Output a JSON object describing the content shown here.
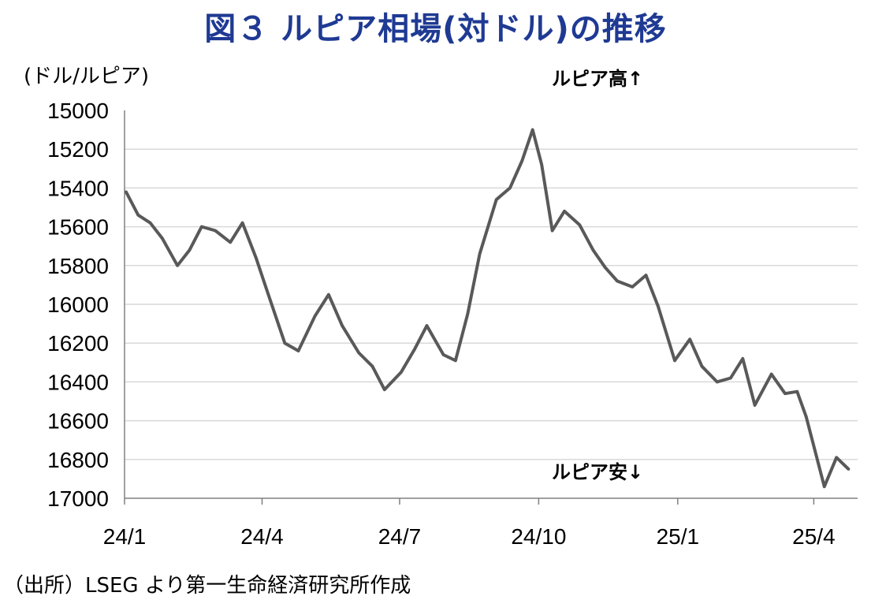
{
  "title": "図３ ルピア相場(対ドル)の推移",
  "unit_label": "(ドル/ルピア)",
  "source": "（出所）LSEG より第一生命経済研究所作成",
  "chart_data": {
    "type": "line",
    "title": "図３ ルピア相場(対ドル)の推移",
    "ylabel": "(ドル/ルピア)",
    "xlabel": "",
    "y_inverted": true,
    "ylim": [
      15000,
      17000
    ],
    "yticks": [
      15000,
      15200,
      15400,
      15600,
      15800,
      16000,
      16200,
      16400,
      16600,
      16800,
      17000
    ],
    "yticks_labels": [
      "15000",
      "15200",
      "15400",
      "15600",
      "15800",
      "16000",
      "16200",
      "16400",
      "16600",
      "16800",
      "17000"
    ],
    "xticks": [
      "24/1",
      "24/4",
      "24/7",
      "24/10",
      "25/1",
      "25/4"
    ],
    "grid": "horizontal",
    "annotations": {
      "top": "ルピア高↑",
      "bottom": "ルピア安↓"
    },
    "series": [
      {
        "color": "#595959",
        "x": [
          "2024-01-02",
          "2024-01-10",
          "2024-01-18",
          "2024-01-26",
          "2024-02-05",
          "2024-02-13",
          "2024-02-21",
          "2024-03-01",
          "2024-03-11",
          "2024-03-19",
          "2024-03-28",
          "2024-04-03",
          "2024-04-16",
          "2024-04-25",
          "2024-05-06",
          "2024-05-15",
          "2024-05-24",
          "2024-06-04",
          "2024-06-13",
          "2024-06-21",
          "2024-07-02",
          "2024-07-11",
          "2024-07-19",
          "2024-07-30",
          "2024-08-07",
          "2024-08-15",
          "2024-08-23",
          "2024-09-03",
          "2024-09-12",
          "2024-09-20",
          "2024-09-27",
          "2024-10-03",
          "2024-10-10",
          "2024-10-18",
          "2024-10-28",
          "2024-11-06",
          "2024-11-14",
          "2024-11-22",
          "2024-12-02",
          "2024-12-11",
          "2024-12-19",
          "2024-12-30",
          "2025-01-09",
          "2025-01-17",
          "2025-01-27",
          "2025-02-05",
          "2025-02-13",
          "2025-02-21",
          "2025-03-04",
          "2025-03-13",
          "2025-03-21",
          "2025-03-27",
          "2025-04-08",
          "2025-04-16",
          "2025-04-24"
        ],
        "y": [
          15420,
          15540,
          15580,
          15660,
          15800,
          15720,
          15600,
          15620,
          15680,
          15580,
          15760,
          15900,
          16200,
          16240,
          16060,
          15950,
          16110,
          16250,
          16320,
          16440,
          16350,
          16230,
          16110,
          16260,
          16290,
          16050,
          15740,
          15460,
          15400,
          15260,
          15100,
          15280,
          15620,
          15520,
          15590,
          15720,
          15810,
          15880,
          15910,
          15850,
          16010,
          16290,
          16180,
          16320,
          16400,
          16380,
          16280,
          16520,
          16360,
          16460,
          16450,
          16580,
          16940,
          16790,
          16850
        ]
      }
    ]
  }
}
